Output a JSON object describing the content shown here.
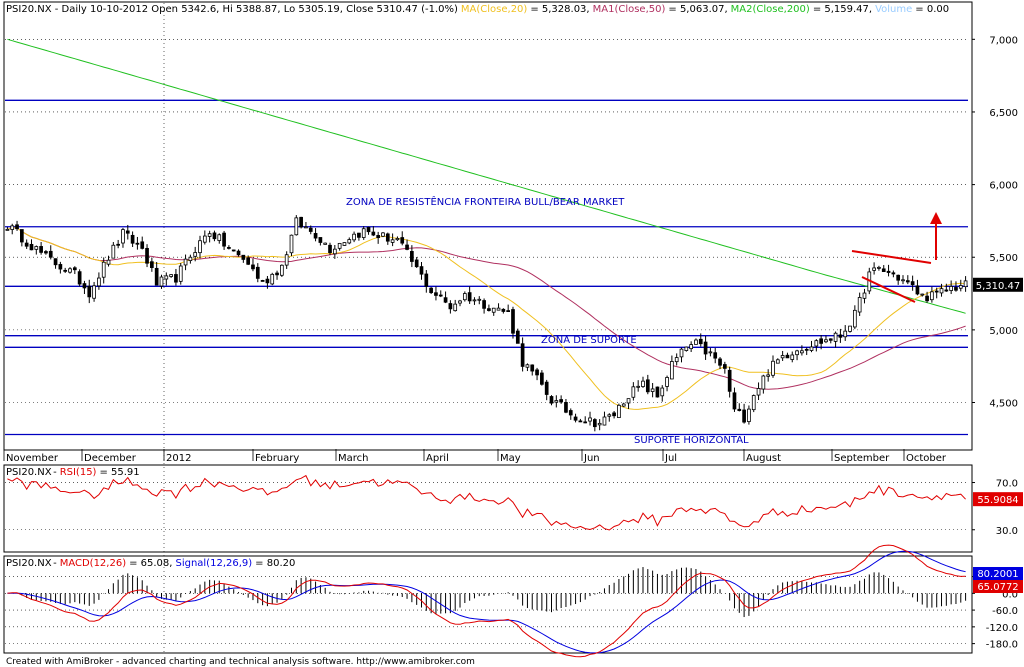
{
  "footer": "Created with AmiBroker - advanced charting and technical analysis software. http://www.amibroker.com",
  "colors": {
    "ma20": "#f0c020",
    "ma50": "#b03060",
    "ma200": "#20c020",
    "volume": "#99ccff",
    "level_line": "#0000c0",
    "rsi": "#e00000",
    "macd": "#e00000",
    "signal": "#0000e0"
  },
  "chart_data": [
    {
      "type": "candlestick",
      "header": {
        "symbol": "PSI20.NX",
        "text": "PSI20.NX - Daily 10-10-2012 Open 5342.6, Hi 5388.87, Lo 5305.19, Close 5310.47 (-1.0%)",
        "ma20": "MA(Close,20)",
        "ma20_value": "= 5,328.03,",
        "ma1": "MA1(Close,50)",
        "ma1_value": "= 5,063.07,",
        "ma2": "MA2(Close,200)",
        "ma2_value": "= 5,159.47,",
        "volume": "Volume",
        "volume_value": "= 0.00"
      },
      "months": [
        "November",
        "December",
        "2012",
        "February",
        "March",
        "April",
        "May",
        "Jun",
        "Jul",
        "August",
        "September",
        "October"
      ],
      "yticks": [
        "7,000",
        "6,500",
        "6,000",
        "5,500",
        "5,000",
        "4,500"
      ],
      "ytick_values": [
        7000,
        6500,
        6000,
        5500,
        5000,
        4500
      ],
      "ylim": [
        4180,
        7250
      ],
      "last_price_label": "5,310.47",
      "last_price": 5310.47,
      "horizontal_levels": [
        6580,
        5710,
        5300,
        4960,
        4880,
        4280
      ],
      "annotations": [
        {
          "text": "ZONA DE RESISTÊNCIA FRONTEIRA BULL/BEAR MARKET"
        },
        {
          "text": "ZONA DE SUPORTE"
        },
        {
          "text": "SUPORTE HORIZONTAL"
        }
      ],
      "anchors_close": [
        [
          0,
          5720
        ],
        [
          8,
          5500
        ],
        [
          14,
          5380
        ],
        [
          17,
          5260
        ],
        [
          21,
          5500
        ],
        [
          24,
          5660
        ],
        [
          28,
          5560
        ],
        [
          31,
          5320
        ],
        [
          35,
          5360
        ],
        [
          39,
          5560
        ],
        [
          42,
          5680
        ],
        [
          46,
          5560
        ],
        [
          50,
          5460
        ],
        [
          53,
          5320
        ],
        [
          57,
          5440
        ],
        [
          60,
          5740
        ],
        [
          64,
          5660
        ],
        [
          67,
          5560
        ],
        [
          71,
          5640
        ],
        [
          74,
          5680
        ],
        [
          78,
          5640
        ],
        [
          81,
          5620
        ],
        [
          85,
          5420
        ],
        [
          88,
          5270
        ],
        [
          92,
          5160
        ],
        [
          95,
          5240
        ],
        [
          99,
          5180
        ],
        [
          102,
          5140
        ],
        [
          104,
          5120
        ],
        [
          107,
          4780
        ],
        [
          110,
          4660
        ],
        [
          113,
          4520
        ],
        [
          117,
          4420
        ],
        [
          120,
          4380
        ],
        [
          123,
          4360
        ],
        [
          126,
          4420
        ],
        [
          129,
          4560
        ],
        [
          132,
          4620
        ],
        [
          135,
          4540
        ],
        [
          138,
          4760
        ],
        [
          141,
          4880
        ],
        [
          143,
          4900
        ],
        [
          146,
          4830
        ],
        [
          149,
          4720
        ],
        [
          151,
          4440
        ],
        [
          153,
          4400
        ],
        [
          155,
          4560
        ],
        [
          158,
          4720
        ],
        [
          161,
          4820
        ],
        [
          164,
          4870
        ],
        [
          167,
          4900
        ],
        [
          170,
          4930
        ],
        [
          173,
          4960
        ],
        [
          176,
          5100
        ],
        [
          179,
          5380
        ],
        [
          181,
          5420
        ],
        [
          184,
          5380
        ],
        [
          187,
          5320
        ],
        [
          190,
          5230
        ],
        [
          193,
          5240
        ],
        [
          196,
          5290
        ],
        [
          199,
          5310
        ]
      ],
      "n_bars": 200
    },
    {
      "type": "line",
      "label": "PSI20.NX - RSI(15)",
      "symbol": "PSI20.NX",
      "indicator": "RSI(15)",
      "value_text": "= 55.91",
      "value": 55.9084,
      "value_label": "55.9084",
      "yticks": [
        "70.0",
        "30.0"
      ],
      "ytick_values": [
        70,
        30
      ],
      "ylim": [
        12,
        84
      ]
    },
    {
      "type": "line",
      "label": "PSI20.NX - MACD(12,26) = 65.08, Signal(12,26,9) = 80.20",
      "symbol": "PSI20.NX",
      "macd_label": "MACD(12,26)",
      "macd_value_text": "= 65.08,",
      "signal_label": "Signal(12,26,9)",
      "signal_value_text": "= 80.20",
      "macd_value": 65.0772,
      "signal_value": 80.2001,
      "signal_value_label": "80.2001",
      "macd_value_label": "65.0772",
      "yticks": [
        "60.0",
        "0.0",
        "-60.0",
        "-120.0",
        "-180.0"
      ],
      "ytick_values": [
        60,
        0,
        -60,
        -120,
        -180
      ],
      "ylim": [
        -210,
        130
      ]
    }
  ]
}
